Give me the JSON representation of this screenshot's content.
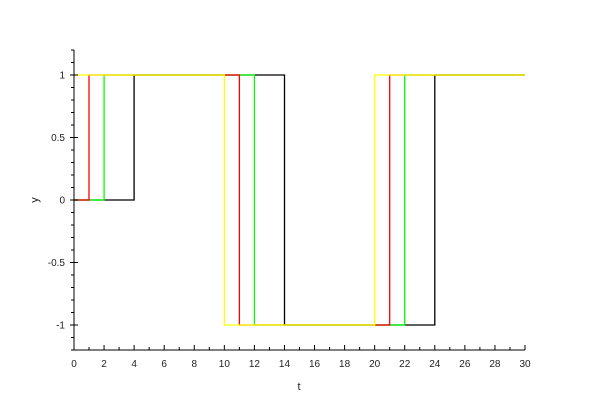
{
  "chart_data": {
    "type": "line",
    "step": true,
    "xlabel": "t",
    "ylabel": "y",
    "xlim": [
      0,
      30
    ],
    "ylim": [
      -1.2,
      1.2
    ],
    "grid": false,
    "x_ticks": [
      "0",
      "2",
      "4",
      "6",
      "8",
      "10",
      "12",
      "14",
      "16",
      "18",
      "20",
      "22",
      "24",
      "26",
      "28",
      "30"
    ],
    "y_ticks": [
      "-1",
      "-0.5",
      "0",
      "0.5",
      "1"
    ],
    "series": [
      {
        "color": "#000000",
        "points": [
          [
            0,
            0
          ],
          [
            4,
            0
          ],
          [
            4,
            1
          ],
          [
            14,
            1
          ],
          [
            14,
            -1
          ],
          [
            24,
            -1
          ],
          [
            24,
            1
          ],
          [
            30,
            1
          ]
        ]
      },
      {
        "color": "#00ff00",
        "points": [
          [
            0,
            0
          ],
          [
            2,
            0
          ],
          [
            2,
            1
          ],
          [
            12,
            1
          ],
          [
            12,
            -1
          ],
          [
            22,
            -1
          ],
          [
            22,
            1
          ],
          [
            30,
            1
          ]
        ]
      },
      {
        "color": "#ff0000",
        "points": [
          [
            0,
            0
          ],
          [
            1,
            0
          ],
          [
            1,
            1
          ],
          [
            11,
            1
          ],
          [
            11,
            -1
          ],
          [
            21,
            -1
          ],
          [
            21,
            1
          ],
          [
            30,
            1
          ]
        ]
      },
      {
        "color": "#ffff00",
        "points": [
          [
            0,
            1
          ],
          [
            10,
            1
          ],
          [
            10,
            -1
          ],
          [
            20,
            -1
          ],
          [
            20,
            1
          ],
          [
            30,
            1
          ]
        ]
      }
    ]
  }
}
